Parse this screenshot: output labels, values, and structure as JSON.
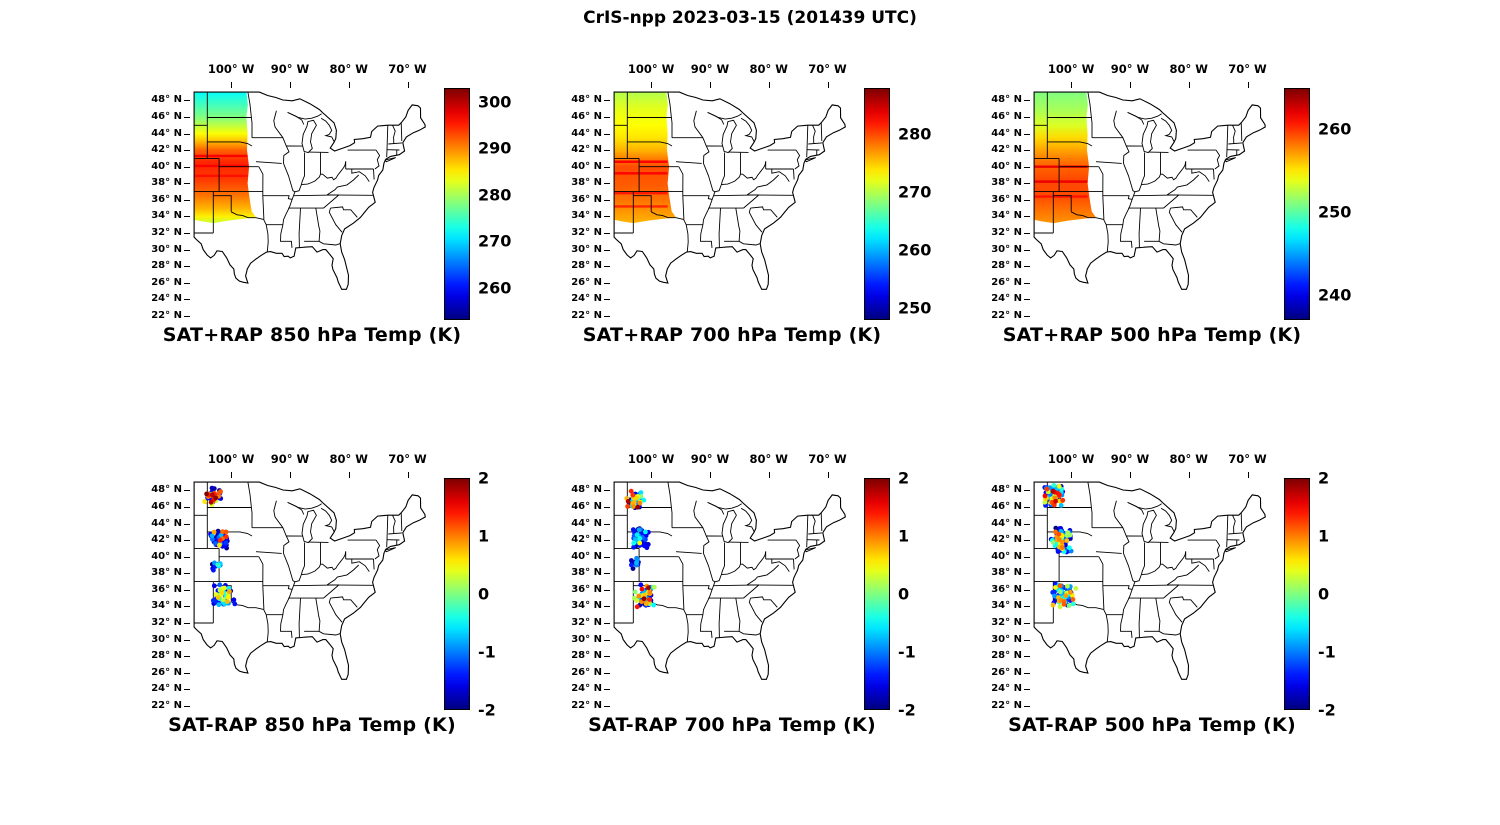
{
  "figure_title": "CrIS-npp 2023-03-15 (201439 UTC)",
  "axes": {
    "lon_ticks": [
      {
        "lon": 100,
        "label": "100° W"
      },
      {
        "lon": 90,
        "label": "90° W"
      },
      {
        "lon": 80,
        "label": "80° W"
      },
      {
        "lon": 70,
        "label": "70° W"
      }
    ],
    "lat_ticks": [
      {
        "lat": 48,
        "label": "48° N"
      },
      {
        "lat": 46,
        "label": "46° N"
      },
      {
        "lat": 44,
        "label": "44° N"
      },
      {
        "lat": 42,
        "label": "42° N"
      },
      {
        "lat": 40,
        "label": "40° N"
      },
      {
        "lat": 38,
        "label": "38° N"
      },
      {
        "lat": 36,
        "label": "36° N"
      },
      {
        "lat": 34,
        "label": "34° N"
      },
      {
        "lat": 32,
        "label": "32° N"
      },
      {
        "lat": 30,
        "label": "30° N"
      },
      {
        "lat": 28,
        "label": "28° N"
      },
      {
        "lat": 26,
        "label": "26° N"
      },
      {
        "lat": 24,
        "label": "24° N"
      },
      {
        "lat": 22,
        "label": "22° N"
      }
    ]
  },
  "colors": {
    "land_outline": "#000000",
    "background": "#ffffff",
    "colormap": "jet"
  },
  "chart_data": [
    {
      "type": "heatmap",
      "id": "sat-plus-rap-850",
      "title": "SAT+RAP 850 hPa Temp (K)",
      "units": "K",
      "colorbar": {
        "min": 253,
        "max": 303,
        "ticks": [
          300,
          290,
          280,
          270,
          260
        ]
      },
      "swath": {
        "lon_west": 106.3,
        "lon_east": 97.4,
        "lat_min": 33.3,
        "lat_max": 49,
        "lat_profile": [
          [
            49,
            272
          ],
          [
            47.5,
            275
          ],
          [
            46,
            278
          ],
          [
            45,
            281
          ],
          [
            44,
            284
          ],
          [
            43.2,
            287
          ],
          [
            42,
            292
          ],
          [
            40.5,
            295
          ],
          [
            38.5,
            294
          ],
          [
            36.5,
            291
          ],
          [
            35,
            288
          ],
          [
            34,
            285
          ],
          [
            33.3,
            282
          ]
        ],
        "streaks": [
          [
            41.3,
            297
          ],
          [
            40.1,
            297
          ],
          [
            38.9,
            296
          ]
        ]
      }
    },
    {
      "type": "heatmap",
      "id": "sat-plus-rap-700",
      "title": "SAT+RAP 700 hPa Temp (K)",
      "units": "K",
      "colorbar": {
        "min": 248,
        "max": 288,
        "ticks": [
          280,
          270,
          260,
          250
        ]
      },
      "swath": {
        "lon_west": 106.3,
        "lon_east": 97.4,
        "lat_min": 33.3,
        "lat_max": 49,
        "lat_profile": [
          [
            49,
            270
          ],
          [
            47,
            272
          ],
          [
            45,
            273
          ],
          [
            43.5,
            274
          ],
          [
            42,
            276
          ],
          [
            40,
            280
          ],
          [
            38,
            279.5
          ],
          [
            36,
            278.5
          ],
          [
            34.5,
            277
          ],
          [
            33.3,
            276
          ]
        ],
        "streaks": [
          [
            40.6,
            283
          ],
          [
            39.2,
            283
          ],
          [
            36.8,
            282
          ],
          [
            35.2,
            281.5
          ]
        ]
      }
    },
    {
      "type": "heatmap",
      "id": "sat-plus-rap-500",
      "title": "SAT+RAP 500 hPa Temp (K)",
      "units": "K",
      "colorbar": {
        "min": 237,
        "max": 265,
        "ticks": [
          260,
          250,
          240
        ]
      },
      "swath": {
        "lon_west": 106.3,
        "lon_east": 97.4,
        "lat_min": 33.3,
        "lat_max": 49,
        "lat_profile": [
          [
            49,
            251
          ],
          [
            47,
            252
          ],
          [
            45,
            253.5
          ],
          [
            43.5,
            255.5
          ],
          [
            42,
            257
          ],
          [
            40.5,
            258.5
          ],
          [
            38.5,
            259.5
          ],
          [
            36.5,
            259.5
          ],
          [
            35,
            258.5
          ],
          [
            33.3,
            257.5
          ]
        ],
        "streaks": [
          [
            40.0,
            262
          ],
          [
            38.2,
            262
          ],
          [
            36.4,
            261
          ]
        ]
      }
    },
    {
      "type": "scatter",
      "id": "sat-minus-rap-850",
      "title": "SAT-RAP 850 hPa Temp (K)",
      "units": "K",
      "colorbar": {
        "min": -2,
        "max": 2,
        "ticks": [
          2,
          1,
          0,
          -1,
          -2
        ]
      },
      "clusters": [
        {
          "lon": 103.2,
          "lat": 47.3,
          "dlon": 1.7,
          "dlat": 1.2,
          "n": 48,
          "mix": [
            [
              -2,
              -1.4,
              0.5
            ],
            [
              0.8,
              2.0,
              0.27
            ],
            [
              -0.4,
              0.7,
              0.23
            ]
          ]
        },
        {
          "lon": 101.8,
          "lat": 42.2,
          "dlon": 1.8,
          "dlat": 1.3,
          "n": 70,
          "mix": [
            [
              -2,
              -1.4,
              0.84
            ],
            [
              -1.3,
              -0.5,
              0.11
            ],
            [
              0.4,
              1.4,
              0.05
            ]
          ]
        },
        {
          "lon": 102.3,
          "lat": 39.0,
          "dlon": 1.0,
          "dlat": 0.9,
          "n": 16,
          "mix": [
            [
              -2,
              -1.3,
              0.8
            ],
            [
              -1.1,
              -0.3,
              0.2
            ]
          ]
        },
        {
          "lon": 101.2,
          "lat": 35.4,
          "dlon": 2.0,
          "dlat": 1.4,
          "n": 55,
          "mix": [
            [
              -2,
              -1.3,
              0.5
            ],
            [
              -1.2,
              -0.3,
              0.26
            ],
            [
              0.0,
              0.9,
              0.24
            ]
          ]
        }
      ]
    },
    {
      "type": "scatter",
      "id": "sat-minus-rap-700",
      "title": "SAT-RAP 700 hPa Temp (K)",
      "units": "K",
      "colorbar": {
        "min": -2,
        "max": 2,
        "ticks": [
          2,
          1,
          0,
          -1,
          -2
        ]
      },
      "clusters": [
        {
          "lon": 102.8,
          "lat": 46.9,
          "dlon": 1.8,
          "dlat": 1.1,
          "n": 50,
          "mix": [
            [
              -2,
              -1.4,
              0.36
            ],
            [
              -1.1,
              -0.3,
              0.2
            ],
            [
              0.0,
              1.0,
              0.34
            ],
            [
              1.2,
              2.0,
              0.1
            ]
          ]
        },
        {
          "lon": 101.8,
          "lat": 42.3,
          "dlon": 1.8,
          "dlat": 1.4,
          "n": 72,
          "mix": [
            [
              -2,
              -1.4,
              0.8
            ],
            [
              -1.3,
              -0.4,
              0.14
            ],
            [
              0.3,
              1.2,
              0.06
            ]
          ]
        },
        {
          "lon": 102.6,
          "lat": 39.3,
          "dlon": 0.9,
          "dlat": 1.0,
          "n": 14,
          "mix": [
            [
              -2,
              -1.2,
              0.7
            ],
            [
              -1.0,
              -0.3,
              0.3
            ]
          ]
        },
        {
          "lon": 101.0,
          "lat": 35.3,
          "dlon": 2.1,
          "dlat": 1.5,
          "n": 58,
          "mix": [
            [
              -2,
              -1.3,
              0.42
            ],
            [
              -1.2,
              -0.3,
              0.26
            ],
            [
              0.0,
              1.0,
              0.27
            ],
            [
              1.2,
              2.0,
              0.05
            ]
          ]
        }
      ]
    },
    {
      "type": "scatter",
      "id": "sat-minus-rap-500",
      "title": "SAT-RAP 500 hPa Temp (K)",
      "units": "K",
      "colorbar": {
        "min": -2,
        "max": 2,
        "ticks": [
          2,
          1,
          0,
          -1,
          -2
        ]
      },
      "clusters": [
        {
          "lon": 102.9,
          "lat": 47.4,
          "dlon": 1.9,
          "dlat": 1.4,
          "n": 80,
          "mix": [
            [
              -2,
              -1.4,
              0.5
            ],
            [
              -1.2,
              -0.3,
              0.16
            ],
            [
              0.0,
              1.0,
              0.2
            ],
            [
              1.1,
              2.0,
              0.14
            ]
          ]
        },
        {
          "lon": 101.6,
          "lat": 42.0,
          "dlon": 2.0,
          "dlat": 1.8,
          "n": 90,
          "mix": [
            [
              -2,
              -1.4,
              0.55
            ],
            [
              -1.2,
              -0.3,
              0.25
            ],
            [
              0.0,
              1.2,
              0.2
            ]
          ]
        },
        {
          "lon": 101.3,
          "lat": 35.3,
          "dlon": 2.2,
          "dlat": 1.7,
          "n": 72,
          "mix": [
            [
              -2,
              -1.3,
              0.45
            ],
            [
              -1.2,
              -0.3,
              0.3
            ],
            [
              0.0,
              1.2,
              0.25
            ]
          ]
        }
      ]
    }
  ]
}
